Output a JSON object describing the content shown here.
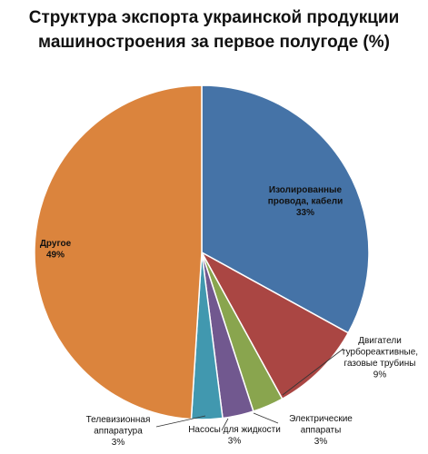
{
  "chart_data": {
    "type": "pie",
    "title_lines": [
      "Структура экспорта украинской продукции",
      "машиностроения за первое полугоде (%)"
    ],
    "start_angle_deg": 0,
    "slices": [
      {
        "label_lines": [
          "Изолированные",
          "провода, кабели"
        ],
        "pct_label": "33%",
        "value": 33,
        "color": "#4573A7"
      },
      {
        "label_lines": [
          "Двигатели",
          "турбореактивные,",
          "газовые трубины"
        ],
        "pct_label": "9%",
        "value": 9,
        "color": "#AA4643"
      },
      {
        "label_lines": [
          "Электрические",
          "аппараты"
        ],
        "pct_label": "3%",
        "value": 3,
        "color": "#89A54E"
      },
      {
        "label_lines": [
          "Насосы  для жидкости"
        ],
        "pct_label": "3%",
        "value": 3,
        "color": "#71588F"
      },
      {
        "label_lines": [
          "Телевизионная",
          "аппаратура"
        ],
        "pct_label": "3%",
        "value": 3,
        "color": "#4198AF"
      },
      {
        "label_lines": [
          "Другое"
        ],
        "pct_label": "49%",
        "value": 49,
        "color": "#DB843D"
      }
    ]
  }
}
